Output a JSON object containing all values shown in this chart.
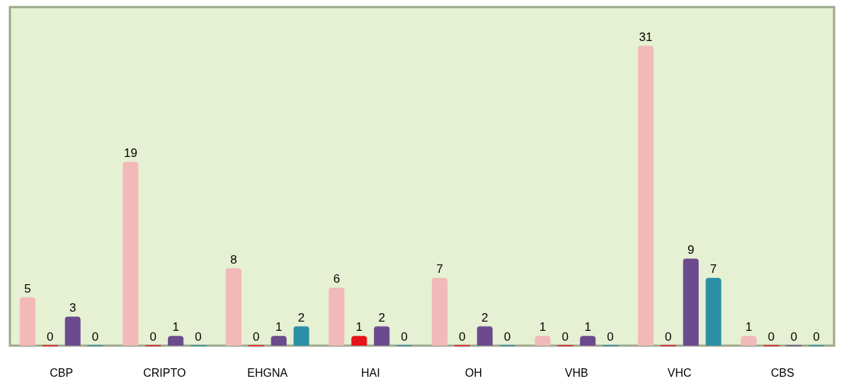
{
  "chart_data": {
    "type": "bar",
    "categories": [
      "CBP",
      "CRIPTO",
      "EHGNA",
      "HAI",
      "OH",
      "VHB",
      "VHC",
      "CBS"
    ],
    "series": [
      {
        "color": "#f2b9b9",
        "values": [
          5,
          19,
          8,
          6,
          7,
          1,
          31,
          1
        ]
      },
      {
        "color": "#e8141b",
        "values": [
          0,
          0,
          0,
          1,
          0,
          0,
          0,
          0
        ]
      },
      {
        "color": "#6b4a8e",
        "values": [
          3,
          1,
          1,
          2,
          2,
          1,
          9,
          0
        ]
      },
      {
        "color": "#2b8fa6",
        "values": [
          0,
          0,
          2,
          0,
          0,
          0,
          7,
          0
        ]
      }
    ],
    "data_labels": true,
    "legend": false,
    "tick_labels": "x"
  }
}
